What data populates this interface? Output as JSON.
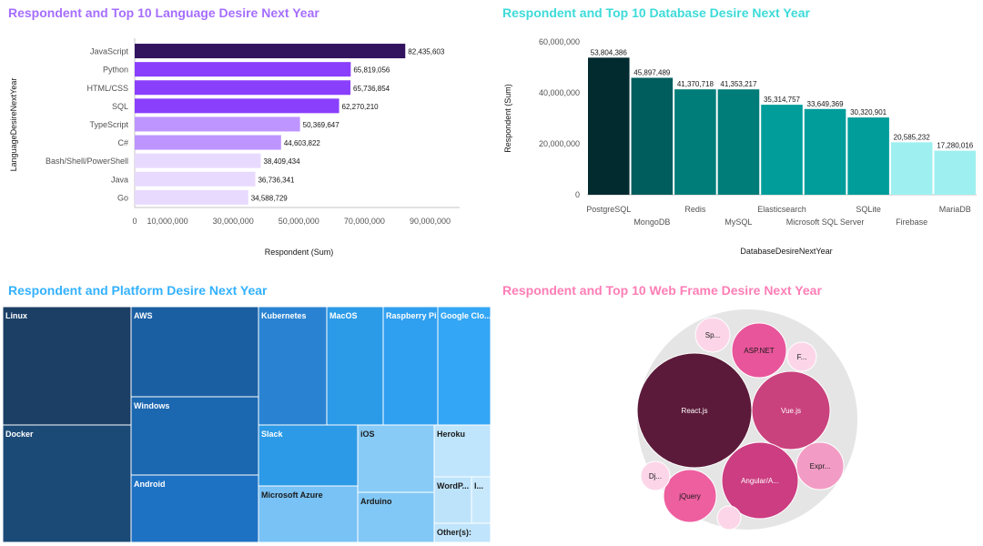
{
  "panels": {
    "language": {
      "title": "Respondent and Top 10 Language Desire Next Year"
    },
    "database": {
      "title": "Respondent and Top 10 Database Desire Next Year"
    },
    "platform": {
      "title": "Respondent and Platform Desire Next Year"
    },
    "webframe": {
      "title": "Respondent and Top 10 Web Frame Desire Next Year"
    }
  },
  "chart_data": [
    {
      "type": "bar",
      "orientation": "horizontal",
      "title": "Respondent and Top 10 Language Desire Next Year",
      "xlabel": "Respondent (Sum)",
      "ylabel": "LanguageDesireNextYear",
      "categories": [
        "JavaScript",
        "Python",
        "HTML/CSS",
        "SQL",
        "TypeScript",
        "C#",
        "Bash/Shell/PowerShell",
        "Java",
        "Go"
      ],
      "values": [
        82435603,
        65819056,
        65736854,
        62270210,
        50369647,
        44603822,
        38409434,
        36736341,
        34588729
      ],
      "value_labels": [
        "82,435,603",
        "65,819,056",
        "65,736,854",
        "62,270,210",
        "50,369,647",
        "44,603,822",
        "38,409,434",
        "36,736,341",
        "34,588,729"
      ],
      "colors": [
        "#31135e",
        "#8a3ffc",
        "#8a3ffc",
        "#8a3ffc",
        "#be95ff",
        "#be95ff",
        "#e8daff",
        "#e8daff",
        "#e8daff"
      ],
      "xlim": [
        0,
        99000000
      ],
      "xticks": [
        0,
        10000000,
        30000000,
        50000000,
        70000000,
        90000000
      ],
      "xtick_labels": [
        "0",
        "10,000,000",
        "30,000,000",
        "50,000,000",
        "70,000,000",
        "90,000,000"
      ]
    },
    {
      "type": "bar",
      "orientation": "vertical",
      "title": "Respondent and Top 10 Database Desire Next Year",
      "xlabel": "DatabaseDesireNextYear",
      "ylabel": "Respondent (Sum)",
      "categories": [
        "PostgreSQL",
        "MongoDB",
        "Redis",
        "MySQL",
        "Elasticsearch",
        "Microsoft SQL Server",
        "SQLite",
        "Firebase",
        "MariaDB"
      ],
      "values": [
        53804386,
        45897489,
        41370718,
        41353217,
        35314757,
        33649369,
        30320901,
        20585232,
        17280016
      ],
      "value_labels": [
        "53,804,386",
        "45,897,489",
        "41,370,718",
        "41,353,217",
        "35,314,757",
        "33,649,369",
        "30,320,901",
        "20,585,232",
        "17,280,016"
      ],
      "colors": [
        "#022b30",
        "#005d5d",
        "#007d79",
        "#007d79",
        "#009d9a",
        "#009d9a",
        "#009d9a",
        "#9ef0f0",
        "#9ef0f0"
      ],
      "ylim": [
        0,
        60000000
      ],
      "yticks": [
        0,
        20000000,
        40000000,
        60000000
      ],
      "ytick_labels": [
        "0",
        "20,000,000",
        "40,000,000",
        "60,000,000"
      ]
    },
    {
      "type": "treemap",
      "title": "Respondent and Platform Desire Next Year",
      "items": [
        {
          "label": "Linux",
          "color": "#1c3f66",
          "text": "#ffffff"
        },
        {
          "label": "Docker",
          "color": "#1c4a77",
          "text": "#ffffff"
        },
        {
          "label": "AWS",
          "color": "#1b5fa3",
          "text": "#ffffff"
        },
        {
          "label": "Windows",
          "color": "#1b67b0",
          "text": "#ffffff"
        },
        {
          "label": "Android",
          "color": "#1e72c3",
          "text": "#ffffff"
        },
        {
          "label": "Kubernetes",
          "color": "#2a83d2",
          "text": "#ffffff"
        },
        {
          "label": "MacOS",
          "color": "#2b9be8",
          "text": "#ffffff"
        },
        {
          "label": "Raspberry Pi",
          "color": "#2f9ff0",
          "text": "#ffffff"
        },
        {
          "label": "Google Clo...",
          "color": "#33a6f5",
          "text": "#ffffff"
        },
        {
          "label": "Slack",
          "color": "#2c9ae6",
          "text": "#ffffff"
        },
        {
          "label": "Microsoft Azure",
          "color": "#78c2f5",
          "text": "#1a1a1a"
        },
        {
          "label": "iOS",
          "color": "#88cbf7",
          "text": "#1a1a1a"
        },
        {
          "label": "Arduino",
          "color": "#82c8f6",
          "text": "#1a1a1a"
        },
        {
          "label": "Heroku",
          "color": "#bfe5fc",
          "text": "#1a1a1a"
        },
        {
          "label": "WordP...",
          "color": "#bde3fb",
          "text": "#1a1a1a"
        },
        {
          "label": "I...",
          "color": "#c8e8fc",
          "text": "#1a1a1a"
        },
        {
          "label": "Other(s):",
          "color": "#bfe4fb",
          "text": "#1a1a1a"
        }
      ]
    },
    {
      "type": "bubble",
      "title": "Respondent and Top 10 Web Frame Desire Next Year",
      "container_color": "#e5e5e5",
      "items": [
        {
          "label": "React.js",
          "color": "#5c1a3a",
          "text": "#ffffff"
        },
        {
          "label": "Vue.js",
          "color": "#c9427d",
          "text": "#ffffff"
        },
        {
          "label": "Angular/A...",
          "color": "#cc3d82",
          "text": "#ffffff"
        },
        {
          "label": "ASP.NET",
          "color": "#e8559a",
          "text": "#1a1a1a"
        },
        {
          "label": "jQuery",
          "color": "#ee5fa0",
          "text": "#1a1a1a"
        },
        {
          "label": "Expr...",
          "color": "#f29cc5",
          "text": "#1a1a1a"
        },
        {
          "label": "Sp...",
          "color": "#fcd6e8",
          "text": "#1a1a1a"
        },
        {
          "label": "F...",
          "color": "#fcd6e8",
          "text": "#1a1a1a"
        },
        {
          "label": "Dj...",
          "color": "#fcd6e8",
          "text": "#1a1a1a"
        },
        {
          "label": "",
          "color": "#fcd6e8",
          "text": "#1a1a1a"
        }
      ]
    }
  ]
}
